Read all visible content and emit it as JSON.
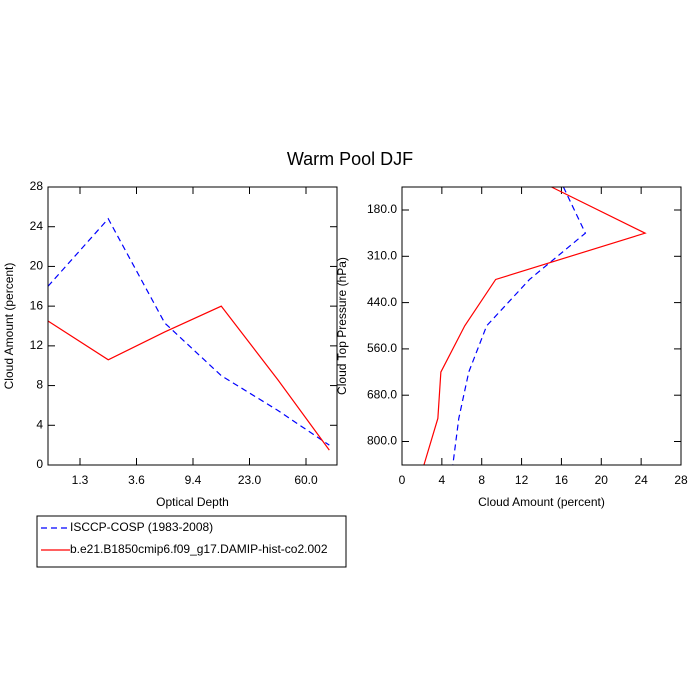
{
  "title": "Warm Pool DJF",
  "chart_data": [
    {
      "type": "line",
      "xlabel": "Optical Depth",
      "ylabel": "Cloud Amount (percent)",
      "x": [
        0.3,
        2.45,
        6.5,
        16.2,
        41.5,
        300
      ],
      "xlim": [
        0.3,
        379
      ],
      "xticks": [
        1.3,
        3.6,
        9.4,
        {
          "value": 23,
          "label": "23.0"
        },
        {
          "value": 60,
          "label": "60.0"
        }
      ],
      "ylim": [
        0,
        28
      ],
      "yticks": [
        0,
        4,
        8,
        12,
        16,
        20,
        24,
        28
      ],
      "series": [
        {
          "name": "ISCCP-COSP (1983-2008)",
          "color": "#0000ff",
          "dash": true,
          "values": [
            18,
            24.8,
            14.3,
            9,
            5.5,
            2
          ]
        },
        {
          "name": "b.e21.B1850cmip6.f09_g17.DAMIP-hist-co2.002",
          "color": "#ff0000",
          "dash": false,
          "values": [
            14.5,
            10.6,
            13.4,
            16,
            8.6,
            1.5
          ]
        }
      ]
    },
    {
      "type": "line",
      "orientation": "horizontal",
      "xlabel": "Cloud Amount (percent)",
      "ylabel": "Cloud Top Pressure (hPa)",
      "y": [
        50,
        245,
        375,
        500,
        620,
        740,
        1000
      ],
      "y_reversed": true,
      "ylim": [
        50,
        1000
      ],
      "yticks": [
        {
          "value": 180,
          "label": "180.0"
        },
        {
          "value": 310,
          "label": "310.0"
        },
        {
          "value": 440,
          "label": "440.0"
        },
        {
          "value": 560,
          "label": "560.0"
        },
        {
          "value": 680,
          "label": "680.0"
        },
        {
          "value": 800,
          "label": "800.0"
        }
      ],
      "xlim": [
        0,
        28
      ],
      "xticks": [
        0,
        4,
        8,
        12,
        16,
        20,
        24,
        28
      ],
      "series": [
        {
          "color": "#0000ff",
          "dash": true,
          "values": [
            16.2,
            18.4,
            12.8,
            8.5,
            6.7,
            5.7,
            5.1
          ]
        },
        {
          "color": "#ff0000",
          "dash": false,
          "values": [
            15.0,
            24.4,
            9.4,
            6.3,
            3.9,
            3.6,
            2.2
          ]
        }
      ]
    }
  ]
}
